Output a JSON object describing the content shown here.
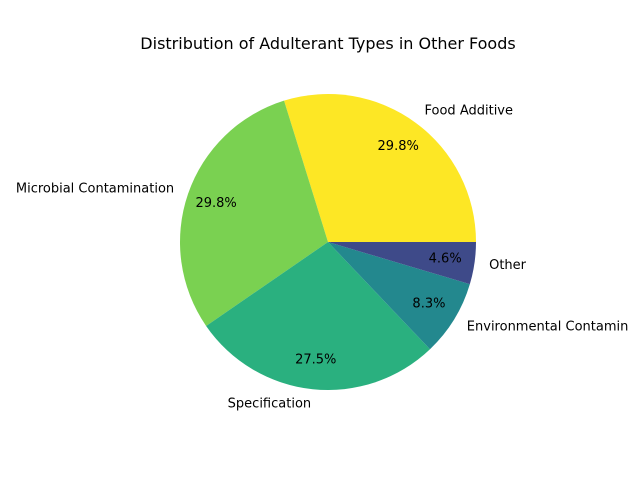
{
  "chart_data": {
    "type": "pie",
    "title": "Distribution of Adulterant Types in Other Foods",
    "slices": [
      {
        "label": "Food Additive",
        "value": 29.8,
        "pct_label": "29.8%",
        "color": "#fde725"
      },
      {
        "label": "Microbial Contamination",
        "value": 29.8,
        "pct_label": "29.8%",
        "color": "#7ad151"
      },
      {
        "label": "Specification",
        "value": 27.5,
        "pct_label": "27.5%",
        "color": "#2ab07f"
      },
      {
        "label": "Environmental Contamin",
        "value": 8.3,
        "pct_label": "8.3%",
        "color": "#23888e"
      },
      {
        "label": "Other",
        "value": 4.6,
        "pct_label": "4.6%",
        "color": "#3e4a89"
      }
    ],
    "start_angle_deg": 0,
    "direction": "counterclockwise",
    "legend": "none"
  }
}
